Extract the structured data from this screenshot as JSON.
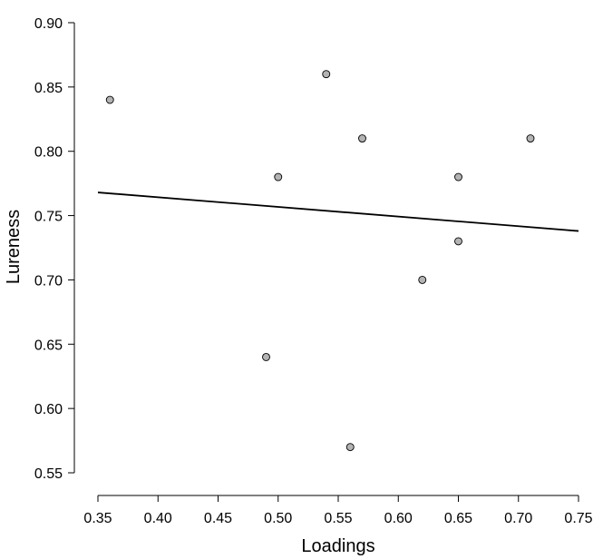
{
  "chart_data": {
    "type": "scatter",
    "title": "",
    "xlabel": "Loadings",
    "ylabel": "Lureness",
    "xlim": [
      0.35,
      0.75
    ],
    "ylim": [
      0.55,
      0.9
    ],
    "x_ticks": [
      "0.35",
      "0.40",
      "0.45",
      "0.50",
      "0.55",
      "0.60",
      "0.65",
      "0.70",
      "0.75"
    ],
    "y_ticks": [
      "0.55",
      "0.60",
      "0.65",
      "0.70",
      "0.75",
      "0.80",
      "0.85",
      "0.90"
    ],
    "points": [
      {
        "x": 0.36,
        "y": 0.84
      },
      {
        "x": 0.54,
        "y": 0.86
      },
      {
        "x": 0.57,
        "y": 0.81
      },
      {
        "x": 0.71,
        "y": 0.81
      },
      {
        "x": 0.5,
        "y": 0.78
      },
      {
        "x": 0.65,
        "y": 0.78
      },
      {
        "x": 0.65,
        "y": 0.73
      },
      {
        "x": 0.62,
        "y": 0.7
      },
      {
        "x": 0.49,
        "y": 0.64
      },
      {
        "x": 0.56,
        "y": 0.57
      }
    ],
    "regression_line": {
      "x": [
        0.35,
        0.75
      ],
      "y": [
        0.768,
        0.738
      ]
    },
    "grid": false,
    "legend": "none",
    "colors": {
      "point_fill": "#b3b3b3",
      "point_stroke": "#000000",
      "line": "#000000"
    }
  }
}
